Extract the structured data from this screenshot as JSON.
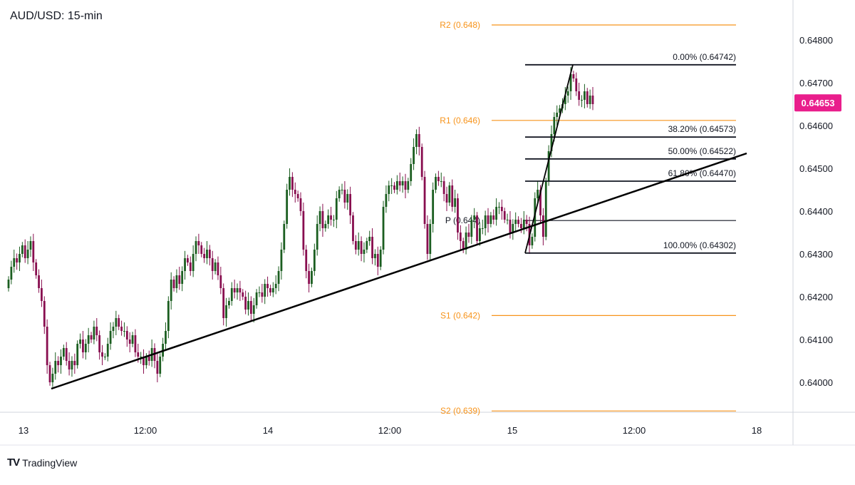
{
  "chart_data": {
    "type": "candlestick",
    "title": "AUD/USD: 15-min",
    "y_range": [
      0.6393,
      0.6488
    ],
    "y_ticks": [
      "0.64000",
      "0.64100",
      "0.64200",
      "0.64300",
      "0.64400",
      "0.64500",
      "0.64600",
      "0.64700",
      "0.64800"
    ],
    "x_ticks": [
      "13",
      "12:00",
      "14",
      "12:00",
      "15",
      "12:00",
      "18"
    ],
    "current_price": {
      "label": "0.64653",
      "value": 0.64653,
      "color": "#e91e8c"
    },
    "pivot_levels": [
      {
        "label": "R2 (0.648)",
        "value": 0.64835,
        "color": "#f7931a"
      },
      {
        "label": "R1 (0.646)",
        "value": 0.64612,
        "color": "#f7931a"
      },
      {
        "label": "P (0.644)",
        "value": 0.64378,
        "color": "#131722"
      },
      {
        "label": "S1 (0.642)",
        "value": 0.64156,
        "color": "#f7931a"
      },
      {
        "label": "S2 (0.639)",
        "value": 0.63933,
        "color": "#f7931a"
      }
    ],
    "fibonacci_levels": [
      {
        "label": "0.00% (0.64742)",
        "value": 0.64742
      },
      {
        "label": "38.20% (0.64573)",
        "value": 0.64573
      },
      {
        "label": "50.00% (0.64522)",
        "value": 0.64522
      },
      {
        "label": "61.80% (0.64470)",
        "value": 0.6447
      },
      {
        "label": "100.00% (0.64302)",
        "value": 0.64302
      }
    ],
    "trendline": {
      "from_price": 0.63985,
      "to_price": 0.64535
    },
    "swing": {
      "low": 0.64302,
      "high": 0.64742
    },
    "candle_closes": [
      0.6424,
      0.6427,
      0.6429,
      0.6428,
      0.643,
      0.6432,
      0.6429,
      0.6431,
      0.6433,
      0.6428,
      0.6425,
      0.6422,
      0.6419,
      0.6413,
      0.6404,
      0.64,
      0.6402,
      0.6405,
      0.6404,
      0.6406,
      0.6408,
      0.6405,
      0.6403,
      0.6405,
      0.6404,
      0.6409,
      0.641,
      0.6407,
      0.6409,
      0.6411,
      0.641,
      0.6413,
      0.6411,
      0.6407,
      0.6406,
      0.6406,
      0.6409,
      0.6412,
      0.6413,
      0.6415,
      0.6413,
      0.6412,
      0.6412,
      0.641,
      0.6409,
      0.6411,
      0.6407,
      0.6406,
      0.6406,
      0.6404,
      0.6406,
      0.6405,
      0.6408,
      0.6405,
      0.6402,
      0.6406,
      0.6409,
      0.6412,
      0.6419,
      0.6424,
      0.6422,
      0.6425,
      0.6423,
      0.6426,
      0.6429,
      0.6428,
      0.6426,
      0.643,
      0.6433,
      0.6432,
      0.643,
      0.6429,
      0.6431,
      0.6429,
      0.6426,
      0.6428,
      0.6425,
      0.6422,
      0.6415,
      0.6418,
      0.6419,
      0.6422,
      0.6421,
      0.6422,
      0.6421,
      0.642,
      0.6417,
      0.6419,
      0.6416,
      0.6418,
      0.6421,
      0.6421,
      0.642,
      0.6423,
      0.6422,
      0.6421,
      0.6422,
      0.6423,
      0.6426,
      0.6431,
      0.6437,
      0.6445,
      0.6448,
      0.6445,
      0.6444,
      0.6443,
      0.644,
      0.6431,
      0.6426,
      0.6423,
      0.6426,
      0.6431,
      0.6437,
      0.644,
      0.6436,
      0.6437,
      0.6439,
      0.6438,
      0.6438,
      0.6443,
      0.6445,
      0.6445,
      0.6442,
      0.6444,
      0.6439,
      0.6433,
      0.6431,
      0.6433,
      0.643,
      0.6431,
      0.6433,
      0.6434,
      0.6429,
      0.643,
      0.6427,
      0.6431,
      0.6441,
      0.6444,
      0.6446,
      0.6446,
      0.6445,
      0.6447,
      0.6446,
      0.6447,
      0.6445,
      0.6447,
      0.6451,
      0.6455,
      0.6458,
      0.6455,
      0.6448,
      0.6437,
      0.643,
      0.6437,
      0.6445,
      0.6448,
      0.6447,
      0.6447,
      0.6444,
      0.6442,
      0.6446,
      0.6441,
      0.6443,
      0.6435,
      0.6433,
      0.6431,
      0.6435,
      0.6434,
      0.6438,
      0.6439,
      0.6433,
      0.6436,
      0.6436,
      0.6439,
      0.6437,
      0.6439,
      0.6438,
      0.6441,
      0.6441,
      0.644,
      0.6438,
      0.6438,
      0.6435,
      0.6437,
      0.6438,
      0.6437,
      0.6436,
      0.6438,
      0.6437,
      0.6432,
      0.6434,
      0.6443,
      0.6445,
      0.6439,
      0.6434,
      0.6447,
      0.6454,
      0.6458,
      0.6462,
      0.6463,
      0.6464,
      0.6465,
      0.6467,
      0.6468,
      0.6472,
      0.6471,
      0.6468,
      0.6466,
      0.6466,
      0.6468,
      0.6465,
      0.6467,
      0.6465
    ]
  },
  "branding": {
    "name": "TradingView",
    "logo": "TV"
  }
}
